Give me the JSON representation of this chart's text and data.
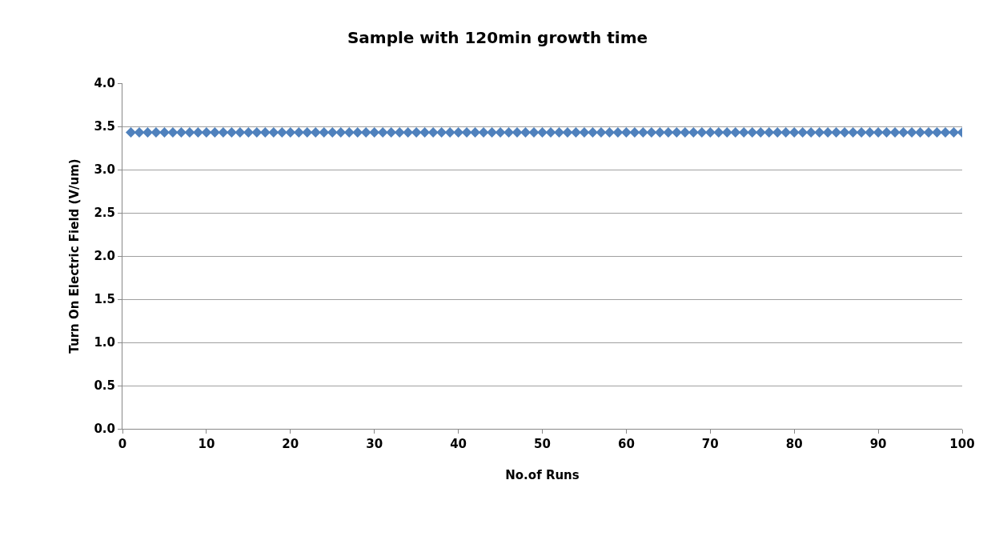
{
  "chart_data": {
    "type": "scatter",
    "title": "Sample with 120min growth time",
    "xlabel": "No.of Runs",
    "ylabel": "Turn On Electric Field (V/um)",
    "x": [
      1,
      2,
      3,
      4,
      5,
      6,
      7,
      8,
      9,
      10,
      11,
      12,
      13,
      14,
      15,
      16,
      17,
      18,
      19,
      20,
      21,
      22,
      23,
      24,
      25,
      26,
      27,
      28,
      29,
      30,
      31,
      32,
      33,
      34,
      35,
      36,
      37,
      38,
      39,
      40,
      41,
      42,
      43,
      44,
      45,
      46,
      47,
      48,
      49,
      50,
      51,
      52,
      53,
      54,
      55,
      56,
      57,
      58,
      59,
      60,
      61,
      62,
      63,
      64,
      65,
      66,
      67,
      68,
      69,
      70,
      71,
      72,
      73,
      74,
      75,
      76,
      77,
      78,
      79,
      80,
      81,
      82,
      83,
      84,
      85,
      86,
      87,
      88,
      89,
      90,
      91,
      92,
      93,
      94,
      95,
      96,
      97,
      98,
      99,
      100
    ],
    "series": [
      {
        "color": "#4f81bd",
        "values": [
          3.43,
          3.43,
          3.43,
          3.43,
          3.43,
          3.43,
          3.43,
          3.43,
          3.43,
          3.43,
          3.43,
          3.43,
          3.43,
          3.43,
          3.43,
          3.43,
          3.43,
          3.43,
          3.43,
          3.43,
          3.43,
          3.43,
          3.43,
          3.43,
          3.43,
          3.43,
          3.43,
          3.43,
          3.43,
          3.43,
          3.43,
          3.43,
          3.43,
          3.43,
          3.43,
          3.43,
          3.43,
          3.43,
          3.43,
          3.43,
          3.43,
          3.43,
          3.43,
          3.43,
          3.43,
          3.43,
          3.43,
          3.43,
          3.43,
          3.43,
          3.43,
          3.43,
          3.43,
          3.43,
          3.43,
          3.43,
          3.43,
          3.43,
          3.43,
          3.43,
          3.43,
          3.43,
          3.43,
          3.43,
          3.43,
          3.43,
          3.43,
          3.43,
          3.43,
          3.43,
          3.43,
          3.43,
          3.43,
          3.43,
          3.43,
          3.43,
          3.43,
          3.43,
          3.43,
          3.43,
          3.43,
          3.43,
          3.43,
          3.43,
          3.43,
          3.43,
          3.43,
          3.43,
          3.43,
          3.43,
          3.43,
          3.43,
          3.43,
          3.43,
          3.43,
          3.43,
          3.43,
          3.43,
          3.43,
          3.43
        ]
      }
    ],
    "xlim": [
      0,
      100
    ],
    "xticks": [
      0,
      10,
      20,
      30,
      40,
      50,
      60,
      70,
      80,
      90,
      100
    ],
    "ylim": [
      0,
      4
    ],
    "yticks": [
      {
        "value": 0,
        "label": "0.0"
      },
      {
        "value": 0.5,
        "label": "0.5"
      },
      {
        "value": 1,
        "label": "1.0"
      },
      {
        "value": 1.5,
        "label": "1.5"
      },
      {
        "value": 2,
        "label": "2.0"
      },
      {
        "value": 2.5,
        "label": "2.5"
      },
      {
        "value": 3,
        "label": "3.0"
      },
      {
        "value": 3.5,
        "label": "3.5"
      },
      {
        "value": 4,
        "label": "4.0"
      }
    ],
    "grid": "y",
    "marker": "diamond"
  }
}
